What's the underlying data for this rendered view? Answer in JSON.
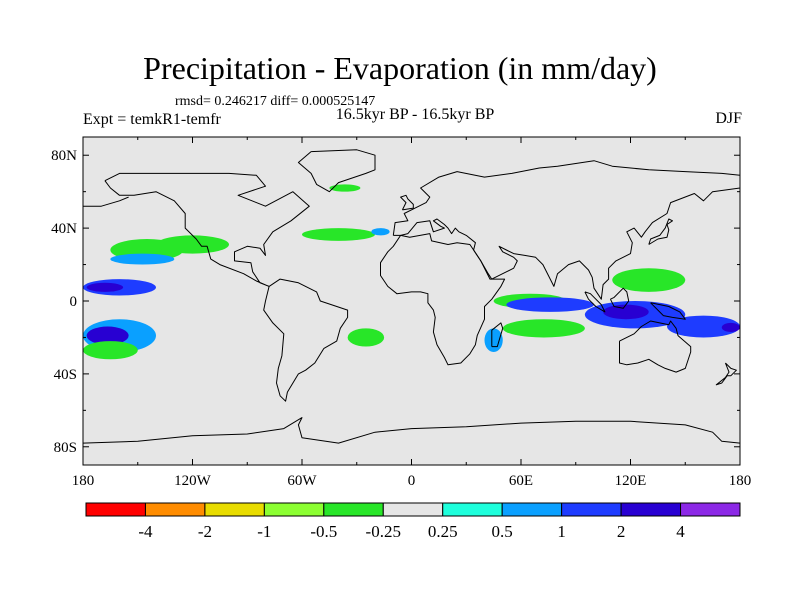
{
  "title": "Precipitation - Evaporation (in mm/day)",
  "stats_text": "rmsd= 0.246217  diff= 0.000525147",
  "left_string": "Expt = temkR1-temfr",
  "center_string": "16.5kyr BP - 16.5kyr BP",
  "right_string": "DJF",
  "chart_data": {
    "type": "heatmap",
    "title": "Precipitation - Evaporation (in mm/day)",
    "subtitle": "rmsd= 0.246217  diff= 0.000525147",
    "xlabel": "",
    "ylabel": "",
    "xlim": [
      -180,
      180
    ],
    "ylim": [
      -90,
      90
    ],
    "x_ticks": [
      {
        "value": -180,
        "label": "180"
      },
      {
        "value": -120,
        "label": "120W"
      },
      {
        "value": -60,
        "label": "60W"
      },
      {
        "value": 0,
        "label": "0"
      },
      {
        "value": 60,
        "label": "60E"
      },
      {
        "value": 120,
        "label": "120E"
      },
      {
        "value": 180,
        "label": "180"
      }
    ],
    "y_ticks": [
      {
        "value": 80,
        "label": "80N"
      },
      {
        "value": 40,
        "label": "40N"
      },
      {
        "value": 0,
        "label": "0"
      },
      {
        "value": -40,
        "label": "40S"
      },
      {
        "value": -80,
        "label": "80S"
      }
    ],
    "missing_color": "#e6e6e6",
    "colorbar": {
      "levels": [
        "-4",
        "-2",
        "-1",
        "-0.5",
        "-0.25",
        "0.25",
        "0.5",
        "1",
        "2",
        "4"
      ],
      "colors": [
        "#ff0000",
        "#ff8c00",
        "#e8dc00",
        "#8cff32",
        "#28e628",
        "#e6e6e6",
        "#1effdc",
        "#0aa0ff",
        "#1e3cff",
        "#2800d2",
        "#8c28e6"
      ]
    },
    "features": [
      {
        "name": "central-pacific-positive-band",
        "lon": [
          -180,
          -140
        ],
        "lat": [
          3,
          12
        ],
        "class": 8
      },
      {
        "name": "central-pacific-core",
        "lon": [
          -178,
          -158
        ],
        "lat": [
          5,
          10
        ],
        "class": 9
      },
      {
        "name": "nw-pacific-negative-band",
        "lon": [
          -165,
          -125
        ],
        "lat": [
          22,
          34
        ],
        "class": 4
      },
      {
        "name": "nw-pacific-negative-band-2",
        "lon": [
          -140,
          -100
        ],
        "lat": [
          26,
          36
        ],
        "class": 4
      },
      {
        "name": "ne-pacific-positive-band",
        "lon": [
          -165,
          -130
        ],
        "lat": [
          20,
          26
        ],
        "class": 7
      },
      {
        "name": "sw-pacific-positive",
        "lon": [
          -180,
          -140
        ],
        "lat": [
          -28,
          -10
        ],
        "class": 7
      },
      {
        "name": "sw-pacific-core",
        "lon": [
          -178,
          -155
        ],
        "lat": [
          -24,
          -14
        ],
        "class": 9
      },
      {
        "name": "sw-pacific-negative-edge",
        "lon": [
          -180,
          -150
        ],
        "lat": [
          -32,
          -22
        ],
        "class": 4
      },
      {
        "name": "north-atlantic-negative",
        "lon": [
          -60,
          -20
        ],
        "lat": [
          33,
          40
        ],
        "class": 4
      },
      {
        "name": "north-atlantic-positive",
        "lon": [
          -22,
          -12
        ],
        "lat": [
          36,
          40
        ],
        "class": 7
      },
      {
        "name": "greenland-sea-negative",
        "lon": [
          -45,
          -28
        ],
        "lat": [
          60,
          64
        ],
        "class": 4
      },
      {
        "name": "south-atlantic-negative",
        "lon": [
          -35,
          -15
        ],
        "lat": [
          -25,
          -15
        ],
        "class": 4
      },
      {
        "name": "indian-ocean-north-negative",
        "lon": [
          45,
          85
        ],
        "lat": [
          -4,
          4
        ],
        "class": 4
      },
      {
        "name": "indian-ocean-equatorial-positive",
        "lon": [
          52,
          100
        ],
        "lat": [
          -6,
          2
        ],
        "class": 8
      },
      {
        "name": "indian-ocean-south-negative",
        "lon": [
          50,
          95
        ],
        "lat": [
          -20,
          -10
        ],
        "class": 4
      },
      {
        "name": "madagascar-positive",
        "lon": [
          40,
          50
        ],
        "lat": [
          -28,
          -15
        ],
        "class": 7
      },
      {
        "name": "maritime-continent-positive",
        "lon": [
          95,
          150
        ],
        "lat": [
          -15,
          0
        ],
        "class": 8
      },
      {
        "name": "maritime-continent-core",
        "lon": [
          105,
          130
        ],
        "lat": [
          -10,
          -2
        ],
        "class": 9
      },
      {
        "name": "west-pacific-negative",
        "lon": [
          110,
          150
        ],
        "lat": [
          5,
          18
        ],
        "class": 4
      },
      {
        "name": "date-line-south-positive",
        "lon": [
          140,
          180
        ],
        "lat": [
          -20,
          -8
        ],
        "class": 8
      },
      {
        "name": "date-line-south-core",
        "lon": [
          170,
          180
        ],
        "lat": [
          -17,
          -12
        ],
        "class": 9
      }
    ]
  }
}
